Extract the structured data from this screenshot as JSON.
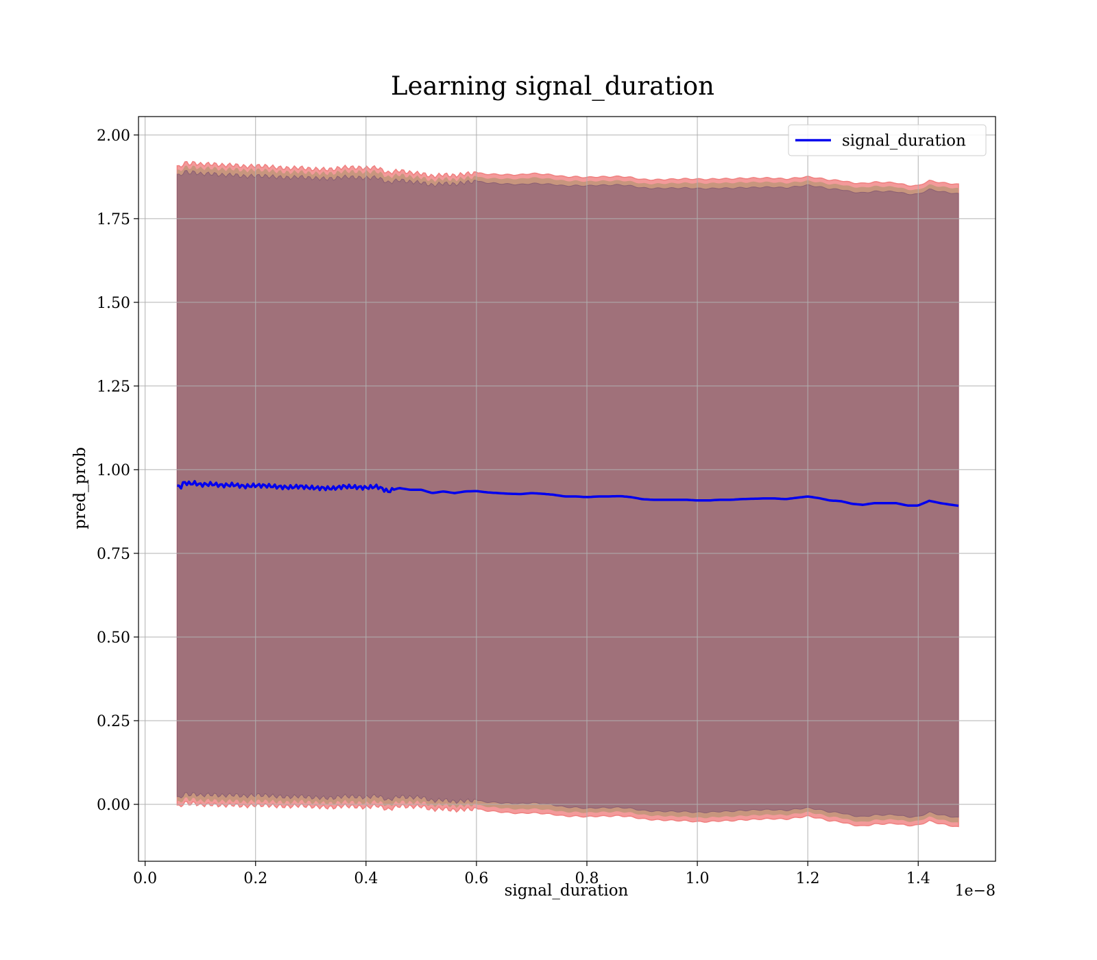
{
  "chart_data": {
    "type": "line",
    "title": "Learning signal_duration",
    "xlabel": "signal_duration",
    "ylabel": "pred_prob",
    "x_offset_label": "1e−8",
    "xlim": [
      -0.012,
      1.54
    ],
    "ylim": [
      -0.17,
      2.055
    ],
    "x_ticks": [
      0.0,
      0.2,
      0.4,
      0.6,
      0.8,
      1.0,
      1.2,
      1.4
    ],
    "x_tick_labels": [
      "0.0",
      "0.2",
      "0.4",
      "0.6",
      "0.8",
      "1.0",
      "1.2",
      "1.4"
    ],
    "y_ticks": [
      0.0,
      0.25,
      0.5,
      0.75,
      1.0,
      1.25,
      1.5,
      1.75,
      2.0
    ],
    "y_tick_labels": [
      "0.00",
      "0.25",
      "0.50",
      "0.75",
      "1.00",
      "1.25",
      "1.50",
      "1.75",
      "2.00"
    ],
    "grid": true,
    "legend": {
      "position": "top-right",
      "entries": [
        "signal_duration"
      ]
    },
    "colors": {
      "line": "#0000ee",
      "band_outer": "#f39a9a",
      "band_mid": "#c8967e",
      "band_inner": "#a0717a",
      "grid": "#b0b0b0"
    },
    "series": [
      {
        "name": "signal_duration",
        "x": [
          0.058,
          0.063,
          0.07,
          0.08,
          0.09,
          0.1,
          0.12,
          0.14,
          0.16,
          0.18,
          0.2,
          0.22,
          0.24,
          0.26,
          0.28,
          0.3,
          0.32,
          0.34,
          0.36,
          0.38,
          0.4,
          0.42,
          0.44,
          0.46,
          0.48,
          0.5,
          0.52,
          0.54,
          0.56,
          0.58,
          0.6,
          0.62,
          0.64,
          0.66,
          0.68,
          0.7,
          0.72,
          0.74,
          0.76,
          0.78,
          0.8,
          0.82,
          0.84,
          0.86,
          0.88,
          0.9,
          0.92,
          0.94,
          0.96,
          0.98,
          1.0,
          1.02,
          1.04,
          1.06,
          1.08,
          1.1,
          1.12,
          1.14,
          1.16,
          1.18,
          1.2,
          1.22,
          1.24,
          1.26,
          1.28,
          1.3,
          1.32,
          1.34,
          1.36,
          1.38,
          1.4,
          1.42,
          1.44,
          1.473
        ],
        "y": [
          0.953,
          0.945,
          0.962,
          0.958,
          0.96,
          0.955,
          0.957,
          0.953,
          0.955,
          0.95,
          0.953,
          0.952,
          0.949,
          0.947,
          0.95,
          0.946,
          0.945,
          0.944,
          0.95,
          0.948,
          0.946,
          0.95,
          0.935,
          0.945,
          0.94,
          0.94,
          0.93,
          0.935,
          0.93,
          0.935,
          0.936,
          0.932,
          0.93,
          0.928,
          0.927,
          0.93,
          0.928,
          0.925,
          0.92,
          0.92,
          0.918,
          0.92,
          0.92,
          0.921,
          0.918,
          0.912,
          0.91,
          0.91,
          0.91,
          0.91,
          0.908,
          0.908,
          0.91,
          0.91,
          0.912,
          0.913,
          0.914,
          0.914,
          0.912,
          0.916,
          0.92,
          0.915,
          0.908,
          0.906,
          0.898,
          0.895,
          0.9,
          0.9,
          0.9,
          0.893,
          0.893,
          0.907,
          0.9,
          0.892
        ]
      }
    ],
    "band_half_width": {
      "x": [
        0.058,
        0.1,
        0.2,
        0.3,
        0.4,
        0.5,
        0.6,
        0.7,
        0.8,
        0.9,
        1.0,
        1.1,
        1.2,
        1.3,
        1.4,
        1.473
      ],
      "outer": [
        0.955,
        0.957,
        0.955,
        0.952,
        0.955,
        0.945,
        0.95,
        0.955,
        0.955,
        0.955,
        0.96,
        0.958,
        0.955,
        0.96,
        0.955,
        0.96
      ],
      "inner": [
        0.93,
        0.928,
        0.925,
        0.925,
        0.925,
        0.918,
        0.925,
        0.925,
        0.93,
        0.93,
        0.932,
        0.93,
        0.93,
        0.932,
        0.93,
        0.932
      ]
    }
  }
}
